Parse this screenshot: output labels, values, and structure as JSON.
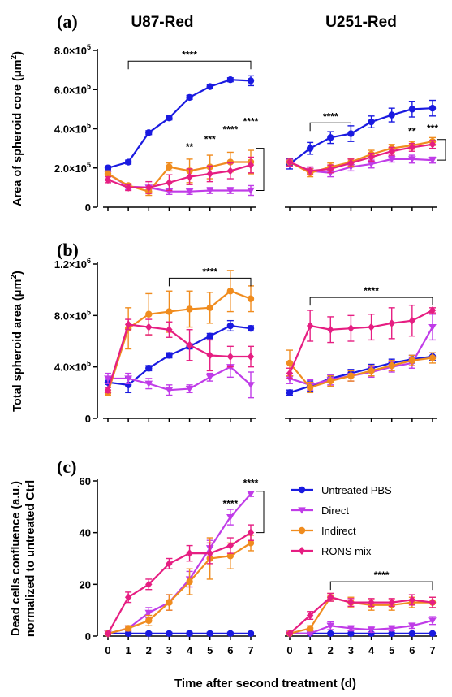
{
  "col_titles": [
    "U87-Red",
    "U251-Red"
  ],
  "panels": [
    "(a)",
    "(b)",
    "(c)"
  ],
  "xlabel": "Time after second treatment (d)",
  "colors": {
    "Untreated PBS": "#1a1ae0",
    "Direct": "#c03ce8",
    "Indirect": "#f08c1e",
    "RONS mix": "#e61e82"
  },
  "legend": [
    {
      "name": "Untreated PBS",
      "marker": "circle"
    },
    {
      "name": "Direct",
      "marker": "triangle-down"
    },
    {
      "name": "Indirect",
      "marker": "circle"
    },
    {
      "name": "RONS mix",
      "marker": "diamond"
    }
  ],
  "chart_data": [
    {
      "panel": "(a)",
      "type": "line",
      "ylabel_main": "Area of spheroid core (μm",
      "ylabel_sup": "2",
      "ylabel_end": ")",
      "ylim": [
        0,
        800000
      ],
      "yticks": [
        {
          "v": 0,
          "m": "0",
          "e": ""
        },
        {
          "v": 200000,
          "m": "2.0×10",
          "e": "5"
        },
        {
          "v": 400000,
          "m": "4.0×10",
          "e": "5"
        },
        {
          "v": 600000,
          "m": "6.0×10",
          "e": "5"
        },
        {
          "v": 800000,
          "m": "8.0×10",
          "e": "5"
        }
      ],
      "x": [
        0,
        1,
        2,
        3,
        4,
        5,
        6,
        7
      ],
      "groups": [
        {
          "name": "U87-Red",
          "series": [
            {
              "name": "Untreated PBS",
              "values": [
                200000,
                230000,
                380000,
                455000,
                560000,
                615000,
                650000,
                645000
              ],
              "err": [
                10000,
                10000,
                10000,
                10000,
                10000,
                10000,
                10000,
                25000
              ]
            },
            {
              "name": "Direct",
              "values": [
                170000,
                105000,
                100000,
                80000,
                80000,
                85000,
                85000,
                85000
              ],
              "err": [
                15000,
                15000,
                10000,
                15000,
                15000,
                15000,
                15000,
                25000
              ]
            },
            {
              "name": "Indirect",
              "values": [
                170000,
                110000,
                80000,
                205000,
                185000,
                205000,
                230000,
                230000
              ],
              "err": [
                15000,
                10000,
                20000,
                20000,
                60000,
                60000,
                50000,
                60000
              ]
            },
            {
              "name": "RONS mix",
              "values": [
                140000,
                100000,
                100000,
                125000,
                155000,
                170000,
                185000,
                215000
              ],
              "err": [
                15000,
                15000,
                30000,
                40000,
                40000,
                40000,
                40000,
                40000
              ]
            }
          ],
          "annotations": [
            {
              "label": "****",
              "bracket": [
                1,
                7
              ],
              "y": 745000
            },
            {
              "label": "**",
              "x": 4,
              "y": 290000
            },
            {
              "label": "***",
              "x": 5,
              "y": 330000
            },
            {
              "label": "****",
              "x": 6,
              "y": 380000
            },
            {
              "label": "****",
              "x": 7,
              "y": 420000
            }
          ],
          "side_bracket": [
            85000,
            300000
          ]
        },
        {
          "name": "U251-Red",
          "series": [
            {
              "name": "Untreated PBS",
              "values": [
                220000,
                300000,
                355000,
                375000,
                435000,
                470000,
                500000,
                505000
              ],
              "err": [
                25000,
                30000,
                30000,
                40000,
                30000,
                35000,
                40000,
                40000
              ]
            },
            {
              "name": "Direct",
              "values": [
                230000,
                185000,
                175000,
                205000,
                220000,
                245000,
                245000,
                240000
              ],
              "err": [
                20000,
                20000,
                20000,
                20000,
                20000,
                15000,
                20000,
                15000
              ]
            },
            {
              "name": "Indirect",
              "values": [
                230000,
                175000,
                205000,
                230000,
                270000,
                300000,
                315000,
                335000
              ],
              "err": [
                20000,
                20000,
                20000,
                20000,
                20000,
                20000,
                20000,
                20000
              ]
            },
            {
              "name": "RONS mix",
              "values": [
                230000,
                185000,
                195000,
                225000,
                255000,
                285000,
                305000,
                320000
              ],
              "err": [
                20000,
                20000,
                20000,
                20000,
                20000,
                20000,
                20000,
                20000
              ]
            }
          ],
          "annotations": [
            {
              "label": "****",
              "bracket": [
                1,
                3
              ],
              "y": 430000
            },
            {
              "label": "**",
              "x": 6,
              "y": 370000
            },
            {
              "label": "***",
              "x": 7,
              "y": 385000
            }
          ],
          "side_bracket": [
            240000,
            345000
          ]
        }
      ]
    },
    {
      "panel": "(b)",
      "type": "line",
      "ylabel_main": "Total spheroid area (μm",
      "ylabel_sup": "2",
      "ylabel_end": ")",
      "ylim": [
        0,
        1200000
      ],
      "yticks": [
        {
          "v": 0,
          "m": "0",
          "e": ""
        },
        {
          "v": 400000,
          "m": "4.0×10",
          "e": "5"
        },
        {
          "v": 800000,
          "m": "8.0×10",
          "e": "5"
        },
        {
          "v": 1200000,
          "m": "1.2×10",
          "e": "6"
        }
      ],
      "x": [
        0,
        1,
        2,
        3,
        4,
        5,
        6,
        7
      ],
      "groups": [
        {
          "name": "U87-Red",
          "series": [
            {
              "name": "Untreated PBS",
              "values": [
                280000,
                260000,
                390000,
                490000,
                560000,
                640000,
                720000,
                700000
              ],
              "err": [
                40000,
                60000,
                20000,
                20000,
                20000,
                20000,
                40000,
                20000
              ]
            },
            {
              "name": "Direct",
              "values": [
                310000,
                310000,
                270000,
                220000,
                230000,
                320000,
                400000,
                260000
              ],
              "err": [
                40000,
                40000,
                40000,
                40000,
                30000,
                30000,
                80000,
                100000
              ]
            },
            {
              "name": "Indirect",
              "values": [
                200000,
                700000,
                810000,
                830000,
                850000,
                860000,
                990000,
                930000
              ],
              "err": [
                20000,
                160000,
                160000,
                160000,
                140000,
                120000,
                160000,
                100000
              ]
            },
            {
              "name": "RONS mix",
              "values": [
                220000,
                730000,
                710000,
                690000,
                570000,
                490000,
                480000,
                480000
              ],
              "err": [
                20000,
                40000,
                60000,
                60000,
                120000,
                120000,
                80000,
                80000
              ]
            }
          ],
          "annotations": [
            {
              "label": "****",
              "bracket": [
                3,
                7
              ],
              "y": 1090000
            }
          ]
        },
        {
          "name": "U251-Red",
          "series": [
            {
              "name": "Untreated PBS",
              "values": [
                200000,
                250000,
                310000,
                350000,
                390000,
                430000,
                460000,
                480000
              ],
              "err": [
                20000,
                40000,
                30000,
                30000,
                30000,
                30000,
                30000,
                30000
              ]
            },
            {
              "name": "Direct",
              "values": [
                310000,
                260000,
                300000,
                330000,
                360000,
                400000,
                430000,
                710000
              ],
              "err": [
                40000,
                40000,
                40000,
                40000,
                40000,
                40000,
                40000,
                100000
              ]
            },
            {
              "name": "Indirect",
              "values": [
                430000,
                240000,
                290000,
                330000,
                370000,
                410000,
                450000,
                470000
              ],
              "err": [
                100000,
                40000,
                40000,
                40000,
                40000,
                40000,
                40000,
                40000
              ]
            },
            {
              "name": "RONS mix",
              "values": [
                350000,
                720000,
                690000,
                700000,
                710000,
                740000,
                760000,
                840000
              ],
              "err": [
                40000,
                120000,
                100000,
                100000,
                100000,
                120000,
                120000,
                20000
              ]
            }
          ],
          "annotations": [
            {
              "label": "****",
              "bracket": [
                1,
                7
              ],
              "y": 940000
            }
          ]
        }
      ]
    },
    {
      "panel": "(c)",
      "type": "line",
      "ylabel_line1": "Dead cells confluence (a.u.)",
      "ylabel_line2": "normalized to untreated Ctrl",
      "ylim": [
        0,
        60
      ],
      "yticks": [
        {
          "v": 0,
          "m": "0",
          "e": ""
        },
        {
          "v": 20,
          "m": "20",
          "e": ""
        },
        {
          "v": 40,
          "m": "40",
          "e": ""
        },
        {
          "v": 60,
          "m": "60",
          "e": ""
        }
      ],
      "x": [
        0,
        1,
        2,
        3,
        4,
        5,
        6,
        7
      ],
      "groups": [
        {
          "name": "U87-Red",
          "series": [
            {
              "name": "Untreated PBS",
              "values": [
                1,
                1,
                1,
                1,
                1,
                1,
                1,
                1
              ],
              "err": [
                0.5,
                0.5,
                0.5,
                0.5,
                0.5,
                0.5,
                0.5,
                0.5
              ]
            },
            {
              "name": "Direct",
              "values": [
                1,
                3,
                9,
                13,
                22,
                34,
                46,
                55
              ],
              "err": [
                0.5,
                1,
                2,
                3,
                3,
                3,
                3,
                1
              ]
            },
            {
              "name": "Indirect",
              "values": [
                1,
                3,
                6,
                13,
                21,
                30,
                31,
                36
              ],
              "err": [
                0.5,
                1,
                2,
                3,
                5,
                8,
                5,
                3
              ]
            },
            {
              "name": "RONS mix",
              "values": [
                1,
                15,
                20,
                28,
                32,
                32,
                35,
                40
              ],
              "err": [
                0.5,
                2,
                2,
                2,
                3,
                4,
                3,
                3
              ]
            }
          ],
          "annotations": [
            {
              "label": "****",
              "x": 6,
              "y": 50
            },
            {
              "label": "****",
              "x": 7,
              "y": 58
            }
          ],
          "side_bracket": [
            40,
            56
          ]
        },
        {
          "name": "U251-Red",
          "series": [
            {
              "name": "Untreated PBS",
              "values": [
                1,
                1,
                1,
                1,
                1,
                1,
                1,
                1
              ],
              "err": [
                0.3,
                0.3,
                0.3,
                0.3,
                0.3,
                0.3,
                0.3,
                0.3
              ]
            },
            {
              "name": "Direct",
              "values": [
                1,
                1,
                4,
                3,
                2.5,
                3,
                4,
                6
              ],
              "err": [
                0.3,
                0.5,
                1.5,
                1,
                1,
                1,
                1,
                1.5
              ]
            },
            {
              "name": "Indirect",
              "values": [
                1,
                3,
                15,
                13,
                12,
                12,
                13,
                13
              ],
              "err": [
                0.3,
                1,
                1.5,
                2,
                2,
                2,
                2,
                2
              ]
            },
            {
              "name": "RONS mix",
              "values": [
                1,
                8,
                15,
                13,
                13,
                13,
                14,
                13
              ],
              "err": [
                0.3,
                1.5,
                1.5,
                1.5,
                1.5,
                1.5,
                2,
                2
              ]
            }
          ],
          "annotations": [
            {
              "label": "****",
              "bracket": [
                2,
                7
              ],
              "y": 21
            }
          ]
        }
      ]
    }
  ]
}
